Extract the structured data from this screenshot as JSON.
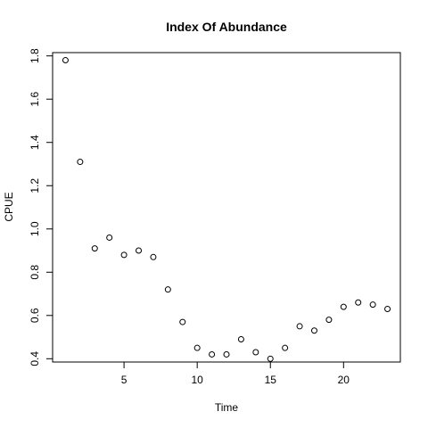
{
  "chart_data": {
    "type": "scatter",
    "title": "Index Of Abundance",
    "xlabel": "Time",
    "ylabel": "CPUE",
    "xlim": [
      0.12,
      23.88
    ],
    "ylim": [
      0.3848,
      1.8152
    ],
    "xticks": [
      5,
      10,
      15,
      20
    ],
    "yticks": [
      0.4,
      0.6,
      0.8,
      1.0,
      1.2,
      1.4,
      1.6,
      1.8
    ],
    "ytick_labels": [
      "0.4",
      "0.6",
      "0.8",
      "1.0",
      "1.2",
      "1.4",
      "1.6",
      "1.8"
    ],
    "grid": false,
    "marker": "open-circle",
    "series": [
      {
        "x": [
          1,
          2,
          3,
          4,
          5,
          6,
          7,
          8,
          9,
          10,
          11,
          12,
          13,
          14,
          15,
          16,
          17,
          18,
          19,
          20,
          21,
          22,
          23
        ],
        "y": [
          1.78,
          1.31,
          0.91,
          0.96,
          0.88,
          0.9,
          0.87,
          0.72,
          0.57,
          0.45,
          0.42,
          0.42,
          0.49,
          0.43,
          0.4,
          0.45,
          0.55,
          0.53,
          0.58,
          0.64,
          0.66,
          0.65,
          0.63
        ]
      }
    ]
  }
}
